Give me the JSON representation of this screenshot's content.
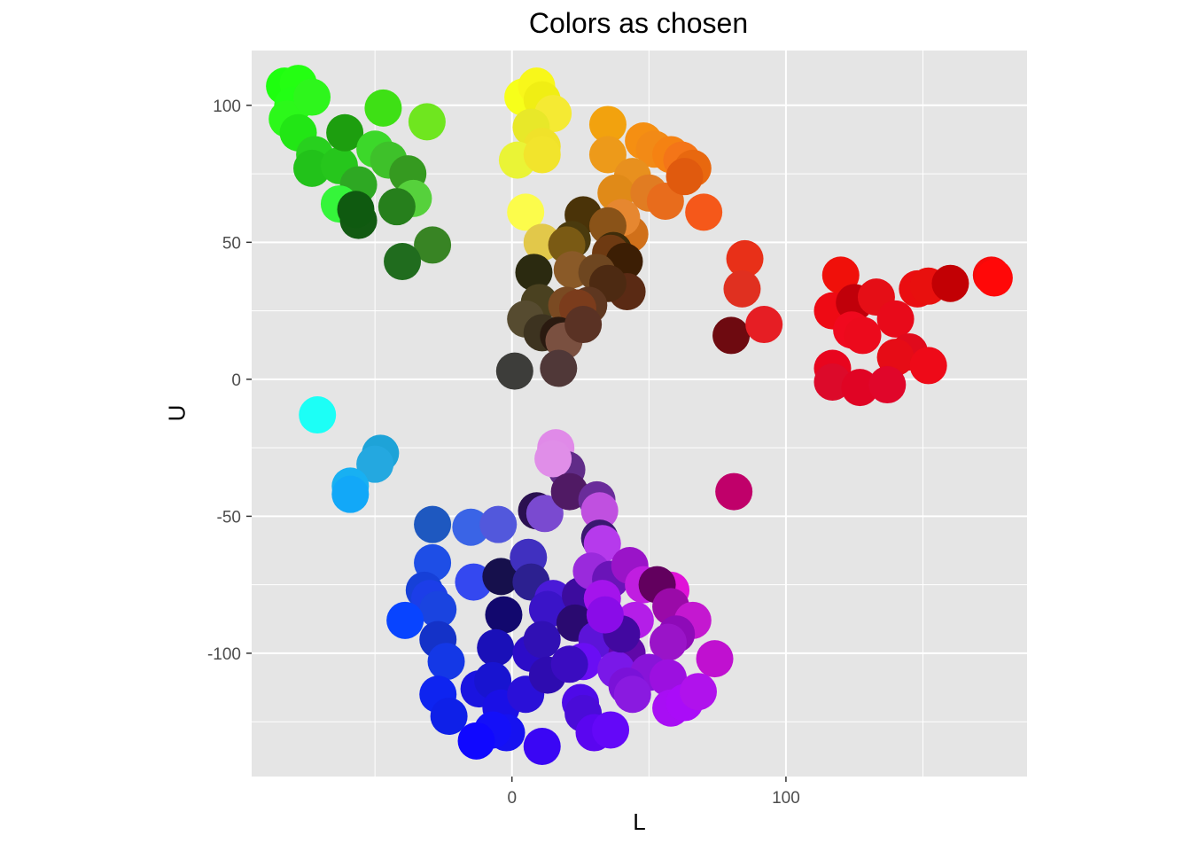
{
  "chart_data": {
    "type": "scatter",
    "title": "Colors as chosen",
    "xlabel": "L",
    "ylabel": "U",
    "xlim": [
      -95,
      188
    ],
    "ylim": [
      -145,
      120
    ],
    "x_ticks": [
      0,
      100
    ],
    "x_tick_labels": [
      "0",
      "100"
    ],
    "y_ticks": [
      100,
      50,
      0,
      -50,
      -100
    ],
    "y_tick_labels": [
      "100",
      "50",
      "0",
      "-50",
      "-100"
    ],
    "grid": true,
    "background": "#e5e5e5",
    "grid_color": "#ffffff",
    "points": [
      {
        "x": -83,
        "y": 107,
        "color": "#1eff0f"
      },
      {
        "x": -78,
        "y": 108,
        "color": "#24ff12"
      },
      {
        "x": -80,
        "y": 100,
        "color": "#22ff14"
      },
      {
        "x": -82,
        "y": 95,
        "color": "#2cf81a"
      },
      {
        "x": -73,
        "y": 103,
        "color": "#2ef61c"
      },
      {
        "x": -78,
        "y": 90,
        "color": "#22e615"
      },
      {
        "x": -72,
        "y": 82,
        "color": "#28d01e"
      },
      {
        "x": -73,
        "y": 77,
        "color": "#22c21a"
      },
      {
        "x": -63,
        "y": 78,
        "color": "#26c61c"
      },
      {
        "x": -61,
        "y": 90,
        "color": "#1d9e0f"
      },
      {
        "x": -47,
        "y": 99,
        "color": "#3ee015"
      },
      {
        "x": -31,
        "y": 94,
        "color": "#6fe61f"
      },
      {
        "x": -50,
        "y": 84,
        "color": "#3cd82a"
      },
      {
        "x": -45,
        "y": 80,
        "color": "#3ec12a"
      },
      {
        "x": -38,
        "y": 75,
        "color": "#359a20"
      },
      {
        "x": -56,
        "y": 71,
        "color": "#2ea823"
      },
      {
        "x": -63,
        "y": 64,
        "color": "#35f53a"
      },
      {
        "x": -36,
        "y": 66,
        "color": "#56d13c"
      },
      {
        "x": -42,
        "y": 63,
        "color": "#267f1c"
      },
      {
        "x": -56,
        "y": 58,
        "color": "#125a12"
      },
      {
        "x": -57,
        "y": 62,
        "color": "#0f5a10"
      },
      {
        "x": -29,
        "y": 49,
        "color": "#388424"
      },
      {
        "x": -40,
        "y": 43,
        "color": "#206c1e"
      },
      {
        "x": 4,
        "y": 103,
        "color": "#f7ff1a"
      },
      {
        "x": 9,
        "y": 107,
        "color": "#f8f71a"
      },
      {
        "x": 11,
        "y": 102,
        "color": "#f0ee14"
      },
      {
        "x": 15,
        "y": 97,
        "color": "#f5ea33"
      },
      {
        "x": 7,
        "y": 92,
        "color": "#e8e829"
      },
      {
        "x": 11,
        "y": 85,
        "color": "#f0e22a"
      },
      {
        "x": 2,
        "y": 80,
        "color": "#eaf436"
      },
      {
        "x": 11,
        "y": 82,
        "color": "#f2e42c"
      },
      {
        "x": 5,
        "y": 61,
        "color": "#fcfc4b"
      },
      {
        "x": 11,
        "y": 50,
        "color": "#e2c84a"
      },
      {
        "x": 35,
        "y": 93,
        "color": "#f2a20e"
      },
      {
        "x": 48,
        "y": 87,
        "color": "#f58f12"
      },
      {
        "x": 52,
        "y": 84,
        "color": "#f28a16"
      },
      {
        "x": 58,
        "y": 82,
        "color": "#f58212"
      },
      {
        "x": 62,
        "y": 80,
        "color": "#f47518"
      },
      {
        "x": 66,
        "y": 77,
        "color": "#e8680f"
      },
      {
        "x": 35,
        "y": 82,
        "color": "#ed9a1a"
      },
      {
        "x": 44,
        "y": 74,
        "color": "#e8901e"
      },
      {
        "x": 38,
        "y": 68,
        "color": "#e08a18"
      },
      {
        "x": 50,
        "y": 68,
        "color": "#e17c22"
      },
      {
        "x": 56,
        "y": 65,
        "color": "#e86c1c"
      },
      {
        "x": 63,
        "y": 74,
        "color": "#e05a0e"
      },
      {
        "x": 70,
        "y": 61,
        "color": "#f5581a"
      },
      {
        "x": 43,
        "y": 53,
        "color": "#d0701a"
      },
      {
        "x": 40,
        "y": 59,
        "color": "#e68730"
      },
      {
        "x": 26,
        "y": 60,
        "color": "#4a3308"
      },
      {
        "x": 35,
        "y": 56,
        "color": "#8a5318"
      },
      {
        "x": 22,
        "y": 51,
        "color": "#4a3a0e"
      },
      {
        "x": 20,
        "y": 49,
        "color": "#7a5a14"
      },
      {
        "x": 37,
        "y": 47,
        "color": "#3e2c0a"
      },
      {
        "x": 36,
        "y": 46,
        "color": "#6e3a12"
      },
      {
        "x": 41,
        "y": 43,
        "color": "#3c1e04"
      },
      {
        "x": 22,
        "y": 40,
        "color": "#8a5a28"
      },
      {
        "x": 8,
        "y": 39,
        "color": "#2b2a10"
      },
      {
        "x": 31,
        "y": 39,
        "color": "#6e4620"
      },
      {
        "x": 42,
        "y": 32,
        "color": "#5a2a14"
      },
      {
        "x": 35,
        "y": 35,
        "color": "#4d2a12"
      },
      {
        "x": 10,
        "y": 28,
        "color": "#4a4120"
      },
      {
        "x": 20,
        "y": 27,
        "color": "#7a4a22"
      },
      {
        "x": 28,
        "y": 27,
        "color": "#5e3720"
      },
      {
        "x": 24,
        "y": 26,
        "color": "#7b3c1c"
      },
      {
        "x": 5,
        "y": 22,
        "color": "#564b30"
      },
      {
        "x": 11,
        "y": 17,
        "color": "#3d3320"
      },
      {
        "x": 17,
        "y": 16,
        "color": "#2a1a10"
      },
      {
        "x": 19,
        "y": 14,
        "color": "#7a5040"
      },
      {
        "x": 26,
        "y": 20,
        "color": "#5a3224"
      },
      {
        "x": 1,
        "y": 3,
        "color": "#3d3d3a"
      },
      {
        "x": 17,
        "y": 4,
        "color": "#503838"
      },
      {
        "x": 80,
        "y": 16,
        "color": "#6e0a10"
      },
      {
        "x": 85,
        "y": 44,
        "color": "#e83018"
      },
      {
        "x": 84,
        "y": 33,
        "color": "#e03020"
      },
      {
        "x": 92,
        "y": 20,
        "color": "#e61e24"
      },
      {
        "x": 120,
        "y": 38,
        "color": "#f0100a"
      },
      {
        "x": 117,
        "y": 25,
        "color": "#ee0a14"
      },
      {
        "x": 125,
        "y": 28,
        "color": "#c0000a"
      },
      {
        "x": 133,
        "y": 30,
        "color": "#e50e16"
      },
      {
        "x": 148,
        "y": 33,
        "color": "#ea0d10"
      },
      {
        "x": 152,
        "y": 34,
        "color": "#e8100e"
      },
      {
        "x": 160,
        "y": 35,
        "color": "#c20004"
      },
      {
        "x": 175,
        "y": 38,
        "color": "#f50a0a"
      },
      {
        "x": 176,
        "y": 37,
        "color": "#ff0808"
      },
      {
        "x": 124,
        "y": 18,
        "color": "#f0091e"
      },
      {
        "x": 128,
        "y": 16,
        "color": "#ec0a1c"
      },
      {
        "x": 140,
        "y": 22,
        "color": "#e80a1a"
      },
      {
        "x": 145,
        "y": 10,
        "color": "#e00a1c"
      },
      {
        "x": 140,
        "y": 8,
        "color": "#e60c16"
      },
      {
        "x": 152,
        "y": 5,
        "color": "#ee0a18"
      },
      {
        "x": 117,
        "y": 4,
        "color": "#e8051e"
      },
      {
        "x": 117,
        "y": -1,
        "color": "#dc0a2a"
      },
      {
        "x": 127,
        "y": -3,
        "color": "#e00424"
      },
      {
        "x": 137,
        "y": -2,
        "color": "#e0062a"
      },
      {
        "x": -71,
        "y": -13,
        "color": "#1cfff6"
      },
      {
        "x": -48,
        "y": -27,
        "color": "#1ea3d8"
      },
      {
        "x": -50,
        "y": -31,
        "color": "#24a8e0"
      },
      {
        "x": -59,
        "y": -39,
        "color": "#18b0f2"
      },
      {
        "x": -59,
        "y": -42,
        "color": "#12a8f8"
      },
      {
        "x": -29,
        "y": -53,
        "color": "#1e58c0"
      },
      {
        "x": -15,
        "y": -54,
        "color": "#3a64e6"
      },
      {
        "x": -5,
        "y": -53,
        "color": "#5258dc"
      },
      {
        "x": 9,
        "y": -48,
        "color": "#2a1050"
      },
      {
        "x": 12,
        "y": -49,
        "color": "#7a4ad0"
      },
      {
        "x": 16,
        "y": -25,
        "color": "#e08ae8"
      },
      {
        "x": 20,
        "y": -33,
        "color": "#602c88"
      },
      {
        "x": 15,
        "y": -29,
        "color": "#e08ee8"
      },
      {
        "x": 21,
        "y": -41,
        "color": "#501a64"
      },
      {
        "x": 31,
        "y": -44,
        "color": "#6a2c9a"
      },
      {
        "x": 32,
        "y": -48,
        "color": "#c050e0"
      },
      {
        "x": 32,
        "y": -58,
        "color": "#3a1870"
      },
      {
        "x": 33,
        "y": -60,
        "color": "#b63aec"
      },
      {
        "x": 81,
        "y": -41,
        "color": "#c0006a"
      },
      {
        "x": -29,
        "y": -67,
        "color": "#1e4ee6"
      },
      {
        "x": -14,
        "y": -74,
        "color": "#3448f0"
      },
      {
        "x": -4,
        "y": -72,
        "color": "#16104c"
      },
      {
        "x": 6,
        "y": -65,
        "color": "#4030c0"
      },
      {
        "x": 7,
        "y": -74,
        "color": "#2c2090"
      },
      {
        "x": -32,
        "y": -77,
        "color": "#1640d8"
      },
      {
        "x": -30,
        "y": -80,
        "color": "#1c3ee8"
      },
      {
        "x": -27,
        "y": -84,
        "color": "#1a44e0"
      },
      {
        "x": -39,
        "y": -88,
        "color": "#0844ff"
      },
      {
        "x": -3,
        "y": -86,
        "color": "#12086e"
      },
      {
        "x": 15,
        "y": -80,
        "color": "#4a1ad8"
      },
      {
        "x": 13,
        "y": -84,
        "color": "#3a14c8"
      },
      {
        "x": 25,
        "y": -79,
        "color": "#3c0c9e"
      },
      {
        "x": 29,
        "y": -70,
        "color": "#9a2adc"
      },
      {
        "x": 36,
        "y": -73,
        "color": "#6a14b8"
      },
      {
        "x": 43,
        "y": -68,
        "color": "#9a14c8"
      },
      {
        "x": 48,
        "y": -75,
        "color": "#c01ee0"
      },
      {
        "x": 58,
        "y": -77,
        "color": "#e012d8"
      },
      {
        "x": 53,
        "y": -75,
        "color": "#62005e"
      },
      {
        "x": 58,
        "y": -83,
        "color": "#9a0aa8"
      },
      {
        "x": 66,
        "y": -88,
        "color": "#c418d0"
      },
      {
        "x": 33,
        "y": -80,
        "color": "#a414ec"
      },
      {
        "x": 45,
        "y": -88,
        "color": "#b41ee8"
      },
      {
        "x": 60,
        "y": -93,
        "color": "#8e0ab8"
      },
      {
        "x": 57,
        "y": -96,
        "color": "#9a14c8"
      },
      {
        "x": 74,
        "y": -102,
        "color": "#c010d0"
      },
      {
        "x": -27,
        "y": -95,
        "color": "#1432c8"
      },
      {
        "x": -24,
        "y": -103,
        "color": "#1438e6"
      },
      {
        "x": -6,
        "y": -98,
        "color": "#1a10b8"
      },
      {
        "x": 7,
        "y": -100,
        "color": "#2c0cc8"
      },
      {
        "x": 11,
        "y": -95,
        "color": "#3010b4"
      },
      {
        "x": 23,
        "y": -89,
        "color": "#2a0a70"
      },
      {
        "x": 31,
        "y": -95,
        "color": "#5c14d8"
      },
      {
        "x": 42,
        "y": -100,
        "color": "#6008a8"
      },
      {
        "x": 26,
        "y": -103,
        "color": "#6a0ef4"
      },
      {
        "x": 38,
        "y": -106,
        "color": "#7a18e8"
      },
      {
        "x": 50,
        "y": -107,
        "color": "#8814d8"
      },
      {
        "x": 57,
        "y": -109,
        "color": "#9c10e0"
      },
      {
        "x": 42,
        "y": -112,
        "color": "#7a12d8"
      },
      {
        "x": 44,
        "y": -115,
        "color": "#8a1ae0"
      },
      {
        "x": 58,
        "y": -120,
        "color": "#a80ef4"
      },
      {
        "x": 63,
        "y": -118,
        "color": "#aa0cf8"
      },
      {
        "x": 68,
        "y": -114,
        "color": "#b012ec"
      },
      {
        "x": -27,
        "y": -115,
        "color": "#0e24f0"
      },
      {
        "x": -23,
        "y": -123,
        "color": "#0e20e8"
      },
      {
        "x": -12,
        "y": -113,
        "color": "#1a14e0"
      },
      {
        "x": -7,
        "y": -110,
        "color": "#1814d0"
      },
      {
        "x": -4,
        "y": -120,
        "color": "#1a10e6"
      },
      {
        "x": 5,
        "y": -115,
        "color": "#2a10d8"
      },
      {
        "x": 13,
        "y": -108,
        "color": "#2e0cb0"
      },
      {
        "x": 25,
        "y": -118,
        "color": "#4e0ae8"
      },
      {
        "x": 26,
        "y": -122,
        "color": "#4a0cd8"
      },
      {
        "x": -2,
        "y": -129,
        "color": "#1612f0"
      },
      {
        "x": -7,
        "y": -128,
        "color": "#1410f8"
      },
      {
        "x": -13,
        "y": -132,
        "color": "#1008ff"
      },
      {
        "x": 11,
        "y": -134,
        "color": "#3a06f4"
      },
      {
        "x": 30,
        "y": -129,
        "color": "#5a06f0"
      },
      {
        "x": 36,
        "y": -128,
        "color": "#6408f8"
      },
      {
        "x": 21,
        "y": -104,
        "color": "#3a0cc0"
      },
      {
        "x": 40,
        "y": -93,
        "color": "#4208a0"
      },
      {
        "x": 34,
        "y": -86,
        "color": "#8a0ce8"
      }
    ]
  }
}
